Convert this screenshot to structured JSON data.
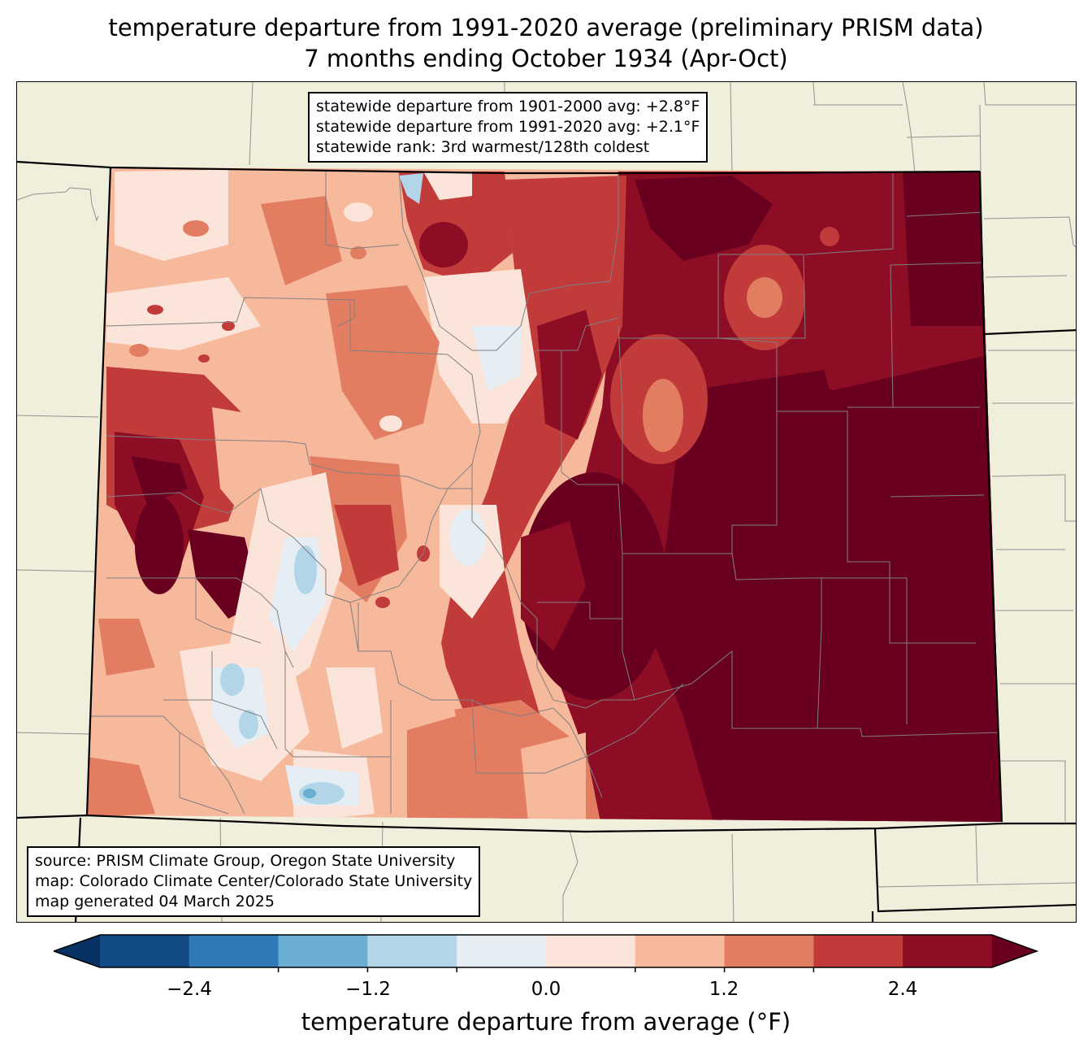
{
  "title": {
    "line1": "temperature departure from 1991-2020 average (preliminary PRISM data)",
    "line2": "7 months ending October 1934 (Apr-Oct)"
  },
  "stats_box": {
    "line1": "statewide departure from 1901-2000 avg: +2.8°F",
    "line2": "statewide departure from 1991-2020 avg: +2.1°F",
    "line3": "statewide rank: 3rd warmest/128th coldest"
  },
  "source_box": {
    "line1": "source: PRISM Climate Group, Oregon State University",
    "line2": "map: Colorado Climate Center/Colorado State University",
    "line3": "map generated 04 March 2025"
  },
  "colorbar": {
    "label": "temperature departure from average (°F)",
    "ticks": [
      "−2.4",
      "−1.2",
      "0.0",
      "1.2",
      "2.4"
    ],
    "bin_colors": [
      "#134b87",
      "#2f7ab7",
      "#6aafd3",
      "#b3d5e8",
      "#e6eef5",
      "#fbe5da",
      "#f7b99c",
      "#e27d62",
      "#c13b3a",
      "#8d0e24"
    ],
    "under_color": "#073163",
    "over_color": "#6a0020"
  },
  "colors": {
    "land": "#f0efdc",
    "county_lines": "#808080",
    "state_lines": "#000000"
  }
}
